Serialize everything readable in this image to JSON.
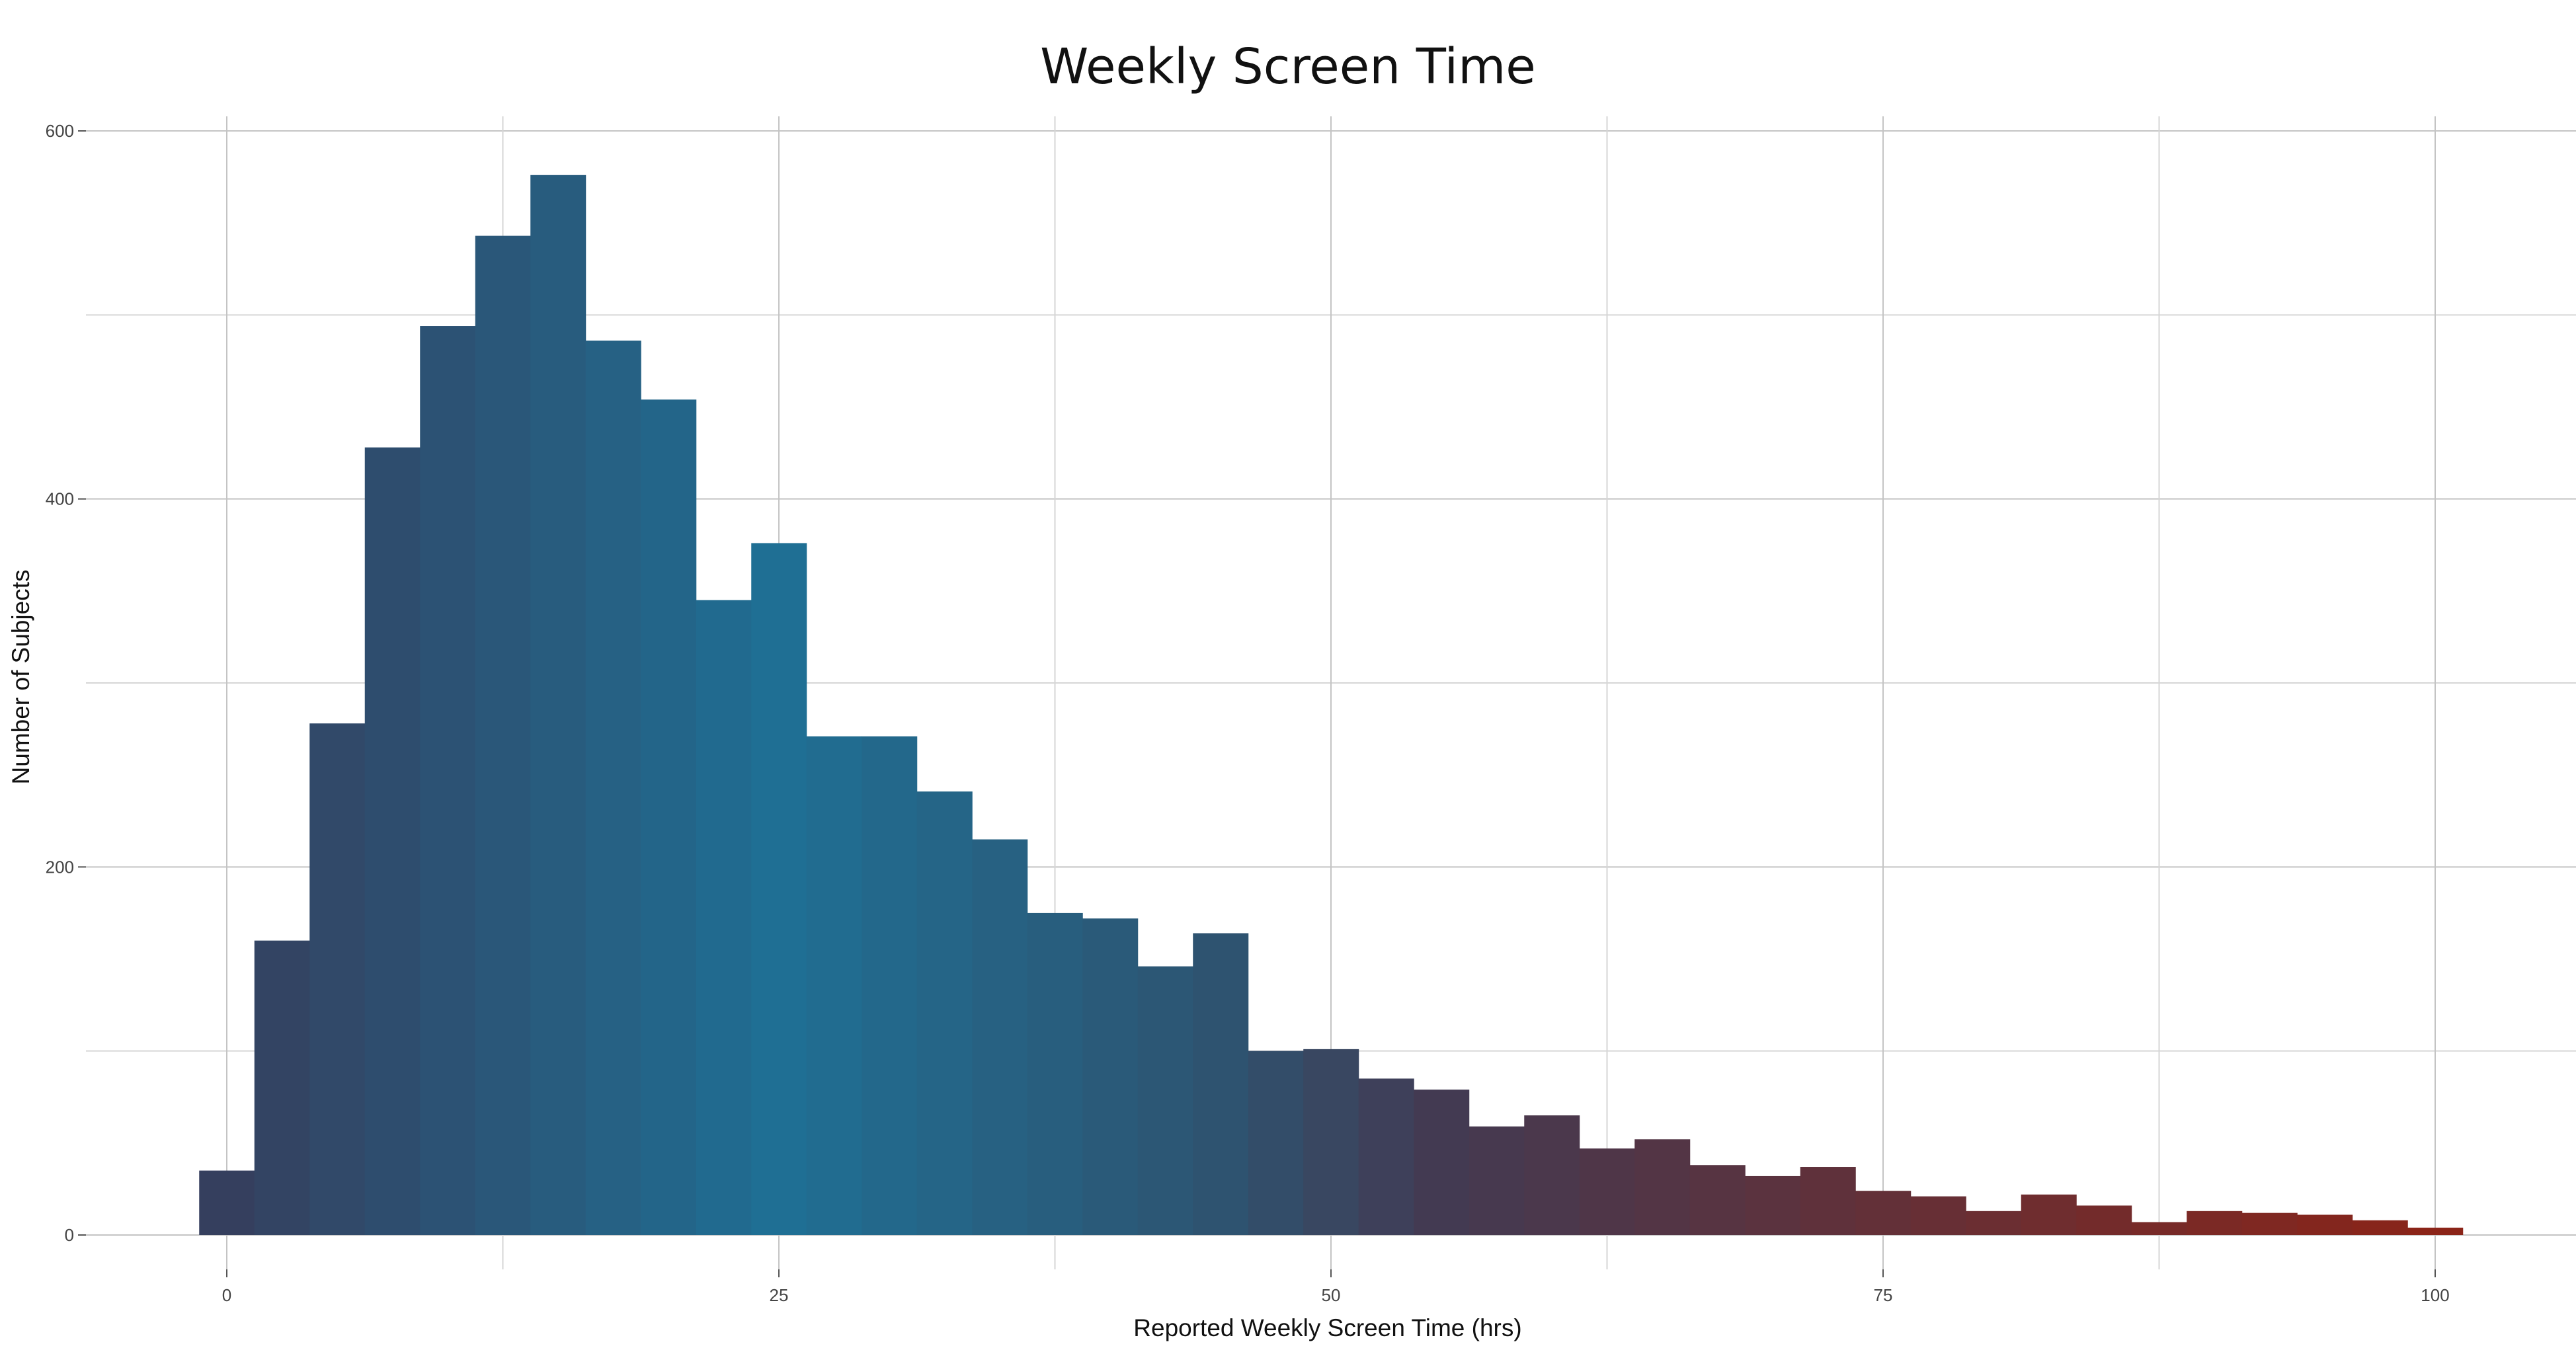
{
  "chart_data": {
    "type": "bar",
    "title": "Weekly Screen Time",
    "xlabel": "Reported Weekly Screen Time (hrs)",
    "ylabel": "Number of Subjects",
    "xlim": [
      -5,
      106
    ],
    "ylim": [
      0,
      610
    ],
    "x_ticks": [
      "0",
      "25",
      "50",
      "75",
      "100"
    ],
    "y_ticks": [
      "0",
      "200",
      "400",
      "600"
    ],
    "grid": true,
    "bin_width": 2.5,
    "bin_start": -1.25,
    "values": [
      35,
      160,
      278,
      428,
      494,
      543,
      576,
      486,
      454,
      345,
      376,
      271,
      271,
      241,
      215,
      175,
      172,
      146,
      164,
      100,
      101,
      85,
      79,
      59,
      65,
      47,
      52,
      38,
      32,
      37,
      24,
      21,
      13,
      22,
      16,
      7,
      13,
      12,
      11,
      8,
      4
    ],
    "colors": {
      "low": "#353f5e",
      "peak": "#1f6f94",
      "mid": "#2e5370",
      "dark": "#433a52",
      "high": "#8b2418"
    }
  }
}
